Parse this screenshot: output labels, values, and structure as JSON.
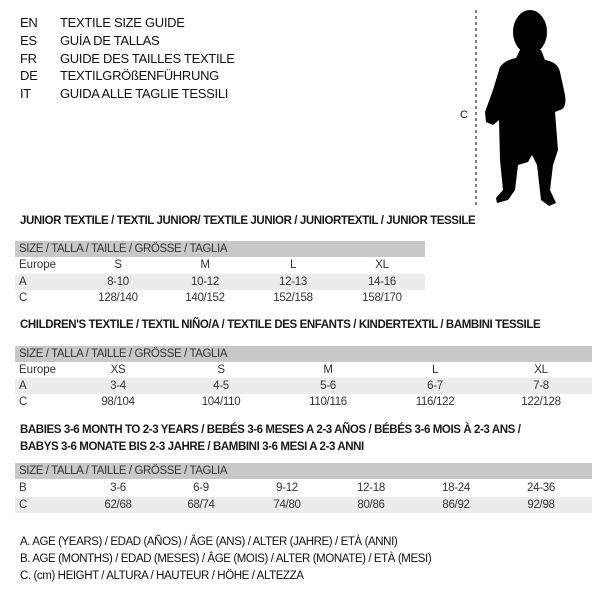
{
  "header": [
    {
      "code": "EN",
      "text": "TEXTILE SIZE GUIDE"
    },
    {
      "code": "ES",
      "text": "GUÍA DE TALLAS"
    },
    {
      "code": "FR",
      "text": "GUIDE DES TAILLES TEXTILE"
    },
    {
      "code": "DE",
      "text": "TEXTILGRÖßENFÜHRUNG"
    },
    {
      "code": "IT",
      "text": "GUIDA ALLE TAGLIE TESSILI"
    }
  ],
  "figure": {
    "measure_label": "C",
    "icon": "child-silhouette"
  },
  "tables": [
    {
      "title": "JUNIOR TEXTILE / TEXTIL JUNIOR/ TEXTILE JUNIOR / JUNIORTEXTIL / JUNIOR TESSILE",
      "header": "SIZE / TALLA / TAILLE / GRÖSSE / TAGLIA",
      "rows": [
        {
          "label": "Europe",
          "cells": [
            "S",
            "M",
            "L",
            "XL"
          ]
        },
        {
          "label": "A",
          "cells": [
            "8-10",
            "10-12",
            "12-13",
            "14-16"
          ]
        },
        {
          "label": "C",
          "cells": [
            "128/140",
            "140/152",
            "152/158",
            "158/170"
          ]
        }
      ]
    },
    {
      "title": "CHILDREN'S TEXTILE / TEXTIL NIÑO/A / TEXTILE DES ENFANTS / KINDERTEXTIL / BAMBINI TESSILE",
      "header": "SIZE / TALLA / TAILLE / GRÖSSE / TAGLIA",
      "rows": [
        {
          "label": "Europe",
          "cells": [
            "XS",
            "S",
            "M",
            "L",
            "XL"
          ]
        },
        {
          "label": "A",
          "cells": [
            "3-4",
            "4-5",
            "5-6",
            "6-7",
            "7-8"
          ]
        },
        {
          "label": "C",
          "cells": [
            "98/104",
            "104/110",
            "110/116",
            "116/122",
            "122/128"
          ]
        }
      ]
    },
    {
      "title": "BABIES 3-6 MONTH TO 2-3 YEARS / BEBÉS 3-6 MESES A 2-3 AÑOS / BÉBÉS 3-6 MOIS À 2-3 ANS /",
      "title2": "BABYS 3-6 MONATE BIS 2-3 JAHRE / BAMBINI 3-6 MESI A 2-3 ANNI",
      "header": "SIZE / TALLA / TAILLE / GRÖSSE / TAGLIA",
      "rows": [
        {
          "label": "B",
          "cells": [
            "3-6",
            "6-9",
            "9-12",
            "12-18",
            "18-24",
            "24-36"
          ]
        },
        {
          "label": "C",
          "cells": [
            "62/68",
            "68/74",
            "74/80",
            "80/86",
            "86/92",
            "92/98"
          ]
        }
      ]
    }
  ],
  "legend": [
    "A. AGE (YEARS) / EDAD (AÑOS) / ÂGE (ANS) / ALTER (JAHRE) / ETÀ (ANNI)",
    "B. AGE (MONTHS) / EDAD (MESES) / ÂGE (MOIS) / ALTER (MONATE) / ETÀ (MESI)",
    "C. (cm) HEIGHT / ALTURA / HAUTEUR / HÖHE / ALTEZZA"
  ]
}
